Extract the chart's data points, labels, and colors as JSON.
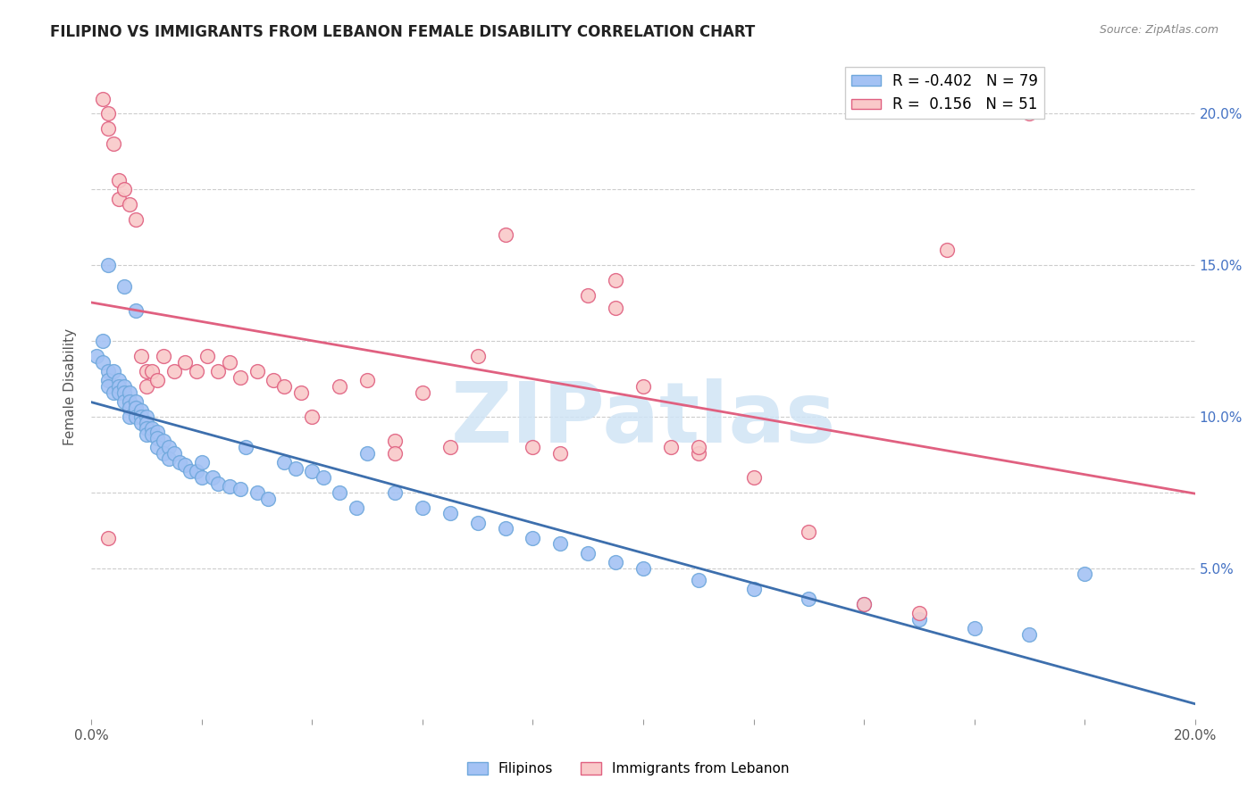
{
  "title": "FILIPINO VS IMMIGRANTS FROM LEBANON FEMALE DISABILITY CORRELATION CHART",
  "source": "Source: ZipAtlas.com",
  "ylabel": "Female Disability",
  "xlim": [
    0.0,
    0.2
  ],
  "ylim": [
    0.0,
    0.22
  ],
  "series1_name": "Filipinos",
  "series1_color": "#a4c2f4",
  "series1_edge": "#6fa8dc",
  "series1_line": "#3d6fad",
  "series1_R": -0.402,
  "series1_N": 79,
  "series2_name": "Immigrants from Lebanon",
  "series2_color": "#f9c9c9",
  "series2_edge": "#e06080",
  "series2_line": "#e06080",
  "series2_R": 0.156,
  "series2_N": 51,
  "watermark": "ZIPatlas",
  "watermark_color": "#d0e4f5",
  "filipinos_x": [
    0.001,
    0.002,
    0.002,
    0.003,
    0.003,
    0.003,
    0.004,
    0.004,
    0.005,
    0.005,
    0.005,
    0.006,
    0.006,
    0.006,
    0.007,
    0.007,
    0.007,
    0.007,
    0.008,
    0.008,
    0.008,
    0.009,
    0.009,
    0.009,
    0.01,
    0.01,
    0.01,
    0.01,
    0.011,
    0.011,
    0.012,
    0.012,
    0.012,
    0.013,
    0.013,
    0.014,
    0.014,
    0.015,
    0.016,
    0.017,
    0.018,
    0.019,
    0.02,
    0.02,
    0.022,
    0.023,
    0.025,
    0.027,
    0.028,
    0.03,
    0.032,
    0.035,
    0.037,
    0.04,
    0.042,
    0.045,
    0.048,
    0.05,
    0.055,
    0.06,
    0.065,
    0.07,
    0.075,
    0.08,
    0.085,
    0.09,
    0.095,
    0.1,
    0.11,
    0.12,
    0.13,
    0.14,
    0.15,
    0.16,
    0.17,
    0.003,
    0.006,
    0.008,
    0.18
  ],
  "filipinos_y": [
    0.12,
    0.125,
    0.118,
    0.115,
    0.112,
    0.11,
    0.108,
    0.115,
    0.112,
    0.11,
    0.108,
    0.11,
    0.108,
    0.105,
    0.108,
    0.105,
    0.103,
    0.1,
    0.105,
    0.103,
    0.1,
    0.102,
    0.1,
    0.098,
    0.1,
    0.098,
    0.096,
    0.094,
    0.096,
    0.094,
    0.095,
    0.093,
    0.09,
    0.092,
    0.088,
    0.09,
    0.086,
    0.088,
    0.085,
    0.084,
    0.082,
    0.082,
    0.08,
    0.085,
    0.08,
    0.078,
    0.077,
    0.076,
    0.09,
    0.075,
    0.073,
    0.085,
    0.083,
    0.082,
    0.08,
    0.075,
    0.07,
    0.088,
    0.075,
    0.07,
    0.068,
    0.065,
    0.063,
    0.06,
    0.058,
    0.055,
    0.052,
    0.05,
    0.046,
    0.043,
    0.04,
    0.038,
    0.033,
    0.03,
    0.028,
    0.15,
    0.143,
    0.135,
    0.048
  ],
  "lebanon_x": [
    0.002,
    0.003,
    0.003,
    0.004,
    0.005,
    0.005,
    0.006,
    0.007,
    0.008,
    0.009,
    0.01,
    0.01,
    0.011,
    0.012,
    0.013,
    0.015,
    0.017,
    0.019,
    0.021,
    0.023,
    0.025,
    0.027,
    0.03,
    0.033,
    0.035,
    0.038,
    0.04,
    0.045,
    0.05,
    0.055,
    0.06,
    0.065,
    0.07,
    0.075,
    0.08,
    0.085,
    0.09,
    0.095,
    0.1,
    0.105,
    0.11,
    0.12,
    0.13,
    0.14,
    0.15,
    0.055,
    0.095,
    0.11,
    0.003,
    0.17,
    0.155
  ],
  "lebanon_y": [
    0.205,
    0.2,
    0.195,
    0.19,
    0.178,
    0.172,
    0.175,
    0.17,
    0.165,
    0.12,
    0.115,
    0.11,
    0.115,
    0.112,
    0.12,
    0.115,
    0.118,
    0.115,
    0.12,
    0.115,
    0.118,
    0.113,
    0.115,
    0.112,
    0.11,
    0.108,
    0.1,
    0.11,
    0.112,
    0.092,
    0.108,
    0.09,
    0.12,
    0.16,
    0.09,
    0.088,
    0.14,
    0.136,
    0.11,
    0.09,
    0.088,
    0.08,
    0.062,
    0.038,
    0.035,
    0.088,
    0.145,
    0.09,
    0.06,
    0.2,
    0.155
  ]
}
